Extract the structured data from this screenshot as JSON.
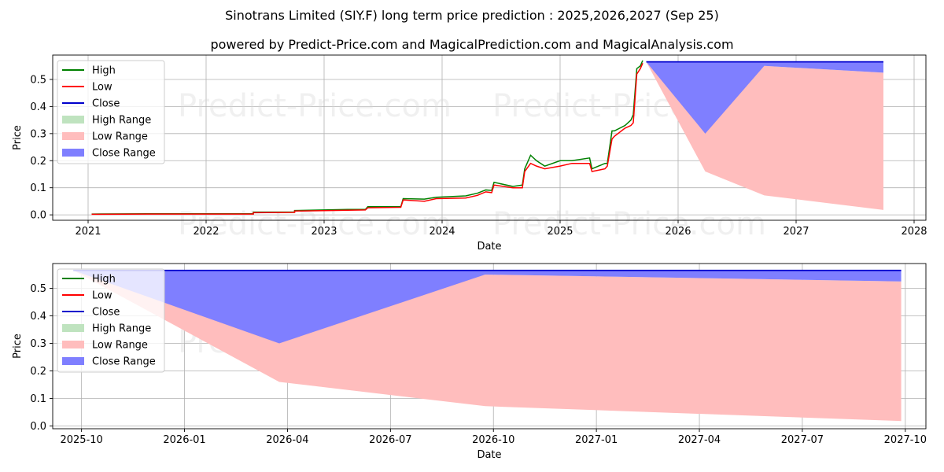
{
  "title": "Sinotrans Limited (SIY.F) long term price prediction : 2025,2026,2027 (Sep 25)",
  "subtitle": "powered by Predict-Price.com and MagicalPrediction.com and MagicalAnalysis.com",
  "watermark": "Predict-Price.com",
  "legend": {
    "high": "High",
    "low": "Low",
    "close": "Close",
    "high_range": "High Range",
    "low_range": "Low Range",
    "close_range": "Close Range"
  },
  "colors": {
    "high": "#008000",
    "low": "#ff0000",
    "close": "#0000cc",
    "high_range": "#bfe3bf",
    "low_range": "#ffbdbd",
    "close_range": "#7f7fff",
    "grid": "#b0b0b0"
  },
  "chart_data": [
    {
      "type": "line",
      "title": "Sinotrans Limited (SIY.F) long term price prediction : 2025,2026,2027 (Sep 25)",
      "xlabel": "Date",
      "ylabel": "Price",
      "xlim": [
        2020.7,
        2028.1
      ],
      "ylim": [
        -0.02,
        0.59
      ],
      "x_ticks": [
        2021,
        2022,
        2023,
        2024,
        2025,
        2026,
        2027,
        2028
      ],
      "x_tick_labels": [
        "2021",
        "2022",
        "2023",
        "2024",
        "2025",
        "2026",
        "2027",
        "2028"
      ],
      "y_ticks": [
        0.0,
        0.1,
        0.2,
        0.3,
        0.4,
        0.5
      ],
      "y_tick_labels": [
        "0.0",
        "0.1",
        "0.2",
        "0.3",
        "0.4",
        "0.5"
      ],
      "grid": true,
      "legend_position": "top-left",
      "history": {
        "x": [
          2021.03,
          2021.5,
          2021.9,
          2022.4,
          2022.4,
          2022.75,
          2022.75,
          2023.2,
          2023.35,
          2023.37,
          2023.65,
          2023.67,
          2023.85,
          2023.95,
          2024.2,
          2024.3,
          2024.37,
          2024.42,
          2024.44,
          2024.6,
          2024.68,
          2024.7,
          2024.75,
          2024.8,
          2024.87,
          2025.0,
          2025.1,
          2025.25,
          2025.27,
          2025.38,
          2025.4,
          2025.44,
          2025.46,
          2025.55,
          2025.6,
          2025.62,
          2025.65,
          2025.68,
          2025.7
        ],
        "high": [
          0.003,
          0.004,
          0.004,
          0.004,
          0.01,
          0.01,
          0.016,
          0.02,
          0.02,
          0.03,
          0.03,
          0.06,
          0.058,
          0.065,
          0.07,
          0.08,
          0.092,
          0.09,
          0.12,
          0.105,
          0.11,
          0.17,
          0.22,
          0.2,
          0.18,
          0.2,
          0.2,
          0.21,
          0.17,
          0.19,
          0.19,
          0.31,
          0.31,
          0.33,
          0.35,
          0.37,
          0.54,
          0.55,
          0.57
        ],
        "low": [
          0.002,
          0.003,
          0.003,
          0.003,
          0.008,
          0.009,
          0.014,
          0.017,
          0.018,
          0.026,
          0.028,
          0.055,
          0.05,
          0.06,
          0.062,
          0.072,
          0.085,
          0.082,
          0.11,
          0.1,
          0.1,
          0.16,
          0.19,
          0.18,
          0.17,
          0.18,
          0.19,
          0.19,
          0.16,
          0.17,
          0.18,
          0.28,
          0.29,
          0.32,
          0.33,
          0.34,
          0.52,
          0.54,
          0.56
        ]
      },
      "forecast": {
        "x": [
          2025.73,
          2026.23,
          2026.73,
          2027.74
        ],
        "close": [
          0.565,
          0.565,
          0.565,
          0.565
        ],
        "close_range_low": [
          0.565,
          0.3,
          0.55,
          0.525
        ],
        "low_range_low": [
          0.565,
          0.16,
          0.072,
          0.018
        ],
        "low_range_high": [
          0.565,
          0.35,
          0.55,
          0.525
        ]
      }
    },
    {
      "type": "area",
      "xlabel": "Date",
      "ylabel": "Price",
      "xlim": [
        2025.68,
        2027.8
      ],
      "ylim": [
        -0.01,
        0.59
      ],
      "x_ticks": [
        2025.75,
        2026.0,
        2026.25,
        2026.5,
        2026.75,
        2027.0,
        2027.25,
        2027.5,
        2027.75
      ],
      "x_tick_labels": [
        "2025-10",
        "2026-01",
        "2026-04",
        "2026-07",
        "2026-10",
        "2027-01",
        "2027-04",
        "2027-07",
        "2027-10"
      ],
      "y_ticks": [
        0.0,
        0.1,
        0.2,
        0.3,
        0.4,
        0.5
      ],
      "y_tick_labels": [
        "0.0",
        "0.1",
        "0.2",
        "0.3",
        "0.4",
        "0.5"
      ],
      "grid": true,
      "legend_position": "top-left",
      "forecast": {
        "x": [
          2025.73,
          2026.23,
          2026.73,
          2027.74
        ],
        "close": [
          0.565,
          0.565,
          0.565,
          0.565
        ],
        "close_range_low": [
          0.565,
          0.3,
          0.55,
          0.525
        ],
        "low_range_low": [
          0.565,
          0.16,
          0.072,
          0.018
        ],
        "low_range_high": [
          0.565,
          0.35,
          0.55,
          0.525
        ]
      }
    }
  ]
}
